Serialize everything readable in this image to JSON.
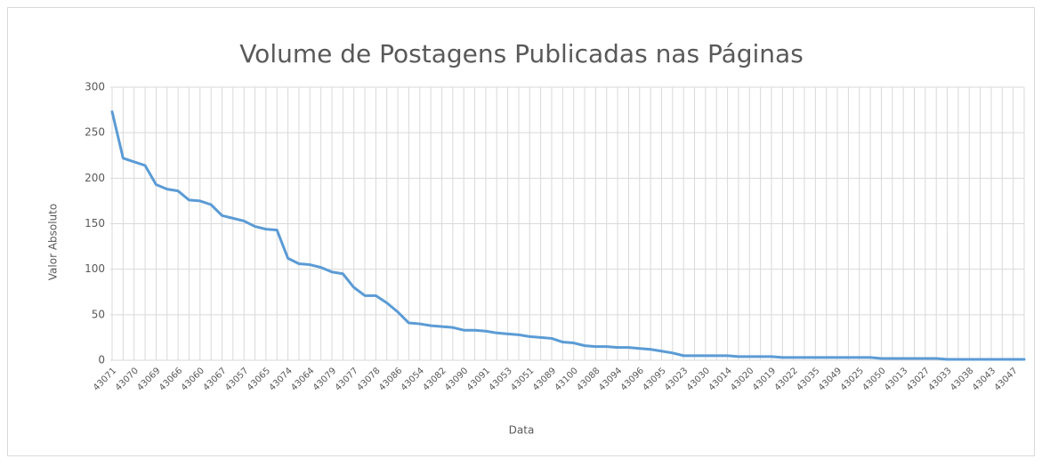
{
  "chart_data": {
    "type": "line",
    "title": "Volume de Postagens Publicadas nas Páginas",
    "x_label": "Data",
    "y_label": "Valor Absoluto",
    "categories": [
      "43071",
      null,
      "43070",
      null,
      "43069",
      null,
      "43066",
      null,
      "43060",
      null,
      "43067",
      null,
      "43057",
      null,
      "43065",
      null,
      "43074",
      null,
      "43064",
      null,
      "43079",
      null,
      "43077",
      null,
      "43078",
      null,
      "43086",
      null,
      "43054",
      null,
      "43082",
      null,
      "43090",
      null,
      "43091",
      null,
      "43053",
      null,
      "43051",
      null,
      "43089",
      null,
      "43100",
      null,
      "43088",
      null,
      "43094",
      null,
      "43096",
      null,
      "43095",
      null,
      "43023",
      null,
      "43030",
      null,
      "43014",
      null,
      "43020",
      null,
      "43019",
      null,
      "43022",
      null,
      "43035",
      null,
      "43049",
      null,
      "43025",
      null,
      "43050",
      null,
      "43013",
      null,
      "43027",
      null,
      "43033",
      null,
      "43038",
      null,
      "43043",
      null,
      "43047",
      null
    ],
    "values": [
      273,
      222,
      218,
      214,
      193,
      188,
      186,
      176,
      175,
      171,
      159,
      156,
      153,
      147,
      144,
      143,
      112,
      106,
      105,
      102,
      97,
      95,
      80,
      71,
      71,
      63,
      53,
      41,
      40,
      38,
      37,
      36,
      33,
      33,
      32,
      30,
      29,
      28,
      26,
      25,
      24,
      20,
      19,
      16,
      15,
      15,
      14,
      14,
      13,
      12,
      10,
      8,
      5,
      5,
      5,
      5,
      5,
      4,
      4,
      4,
      4,
      3,
      3,
      3,
      3,
      3,
      3,
      3,
      3,
      3,
      2,
      2,
      2,
      2,
      2,
      2,
      1,
      1,
      1,
      1,
      1,
      1,
      1,
      1
    ],
    "color": "#5b9bd5",
    "ylim": [
      0,
      300
    ],
    "yticks": [
      0,
      50,
      100,
      150,
      200,
      250,
      300
    ],
    "grid": true
  }
}
